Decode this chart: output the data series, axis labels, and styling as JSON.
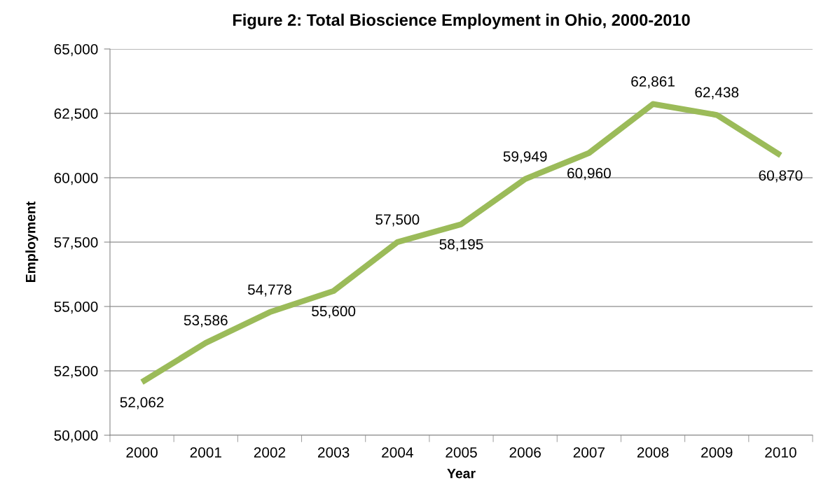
{
  "chart_data": {
    "type": "line",
    "title": "Figure 2: Total Bioscience Employment in Ohio, 2000-2010",
    "xlabel": "Year",
    "ylabel": "Employment",
    "categories": [
      "2000",
      "2001",
      "2002",
      "2003",
      "2004",
      "2005",
      "2006",
      "2007",
      "2008",
      "2009",
      "2010"
    ],
    "series": [
      {
        "color": "#9bbb59",
        "values": [
          52062,
          53586,
          54778,
          55600,
          57500,
          58195,
          59949,
          60960,
          62861,
          62438,
          60870
        ],
        "value_labels": [
          "52,062",
          "53,586",
          "54,778",
          "55,600",
          "57,500",
          "58,195",
          "59,949",
          "60,960",
          "62,861",
          "62,438",
          "60,870"
        ]
      }
    ],
    "ylim": [
      50000,
      65000
    ],
    "yticks": [
      {
        "value": 50000,
        "label": "50,000"
      },
      {
        "value": 52500,
        "label": "52,500"
      },
      {
        "value": 55000,
        "label": "55,000"
      },
      {
        "value": 57500,
        "label": "57,500"
      },
      {
        "value": 60000,
        "label": "60,000"
      },
      {
        "value": 62500,
        "label": "62,500"
      },
      {
        "value": 65000,
        "label": "65,000"
      }
    ],
    "grid": "y",
    "legend": false,
    "marker": "none",
    "line_style": "solid"
  }
}
